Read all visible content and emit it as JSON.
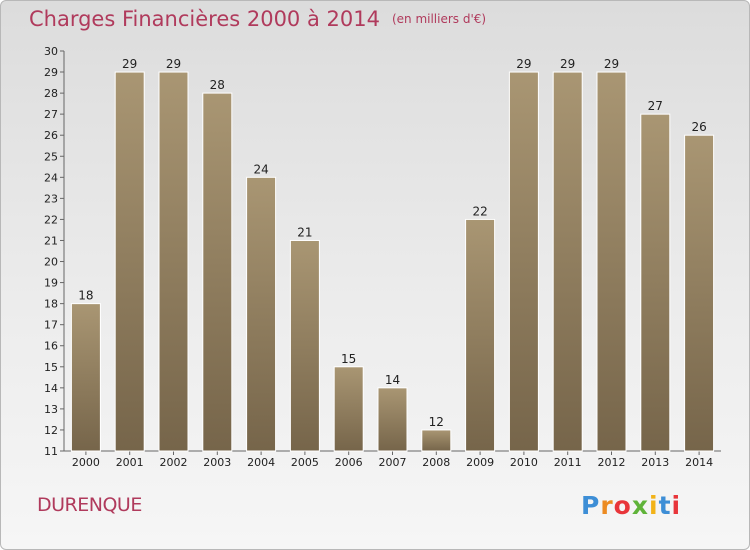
{
  "header": {
    "title": "Charges Financières 2000 à 2014",
    "subtitle": "(en milliers d'€)"
  },
  "footer": {
    "commune": "DURENQUE",
    "logo_letters": [
      "P",
      "r",
      "o",
      "x",
      "i",
      "t",
      "i"
    ]
  },
  "colors": {
    "bar_top": "#a99673",
    "bar_bottom": "#76654a",
    "title": "#b03a5c"
  },
  "chart_data": {
    "type": "bar",
    "title": "Charges Financières 2000 à 2014",
    "subtitle": "(en milliers d'€)",
    "categories": [
      "2000",
      "2001",
      "2002",
      "2003",
      "2004",
      "2005",
      "2006",
      "2007",
      "2008",
      "2009",
      "2010",
      "2011",
      "2012",
      "2013",
      "2014"
    ],
    "values": [
      18,
      29,
      29,
      28,
      24,
      21,
      15,
      14,
      12,
      22,
      29,
      29,
      29,
      27,
      26
    ],
    "ylim": [
      11,
      30
    ],
    "yticks": [
      11,
      12,
      13,
      14,
      15,
      16,
      17,
      18,
      19,
      20,
      21,
      22,
      23,
      24,
      25,
      26,
      27,
      28,
      29,
      30
    ],
    "grid": false,
    "data_labels": true
  }
}
